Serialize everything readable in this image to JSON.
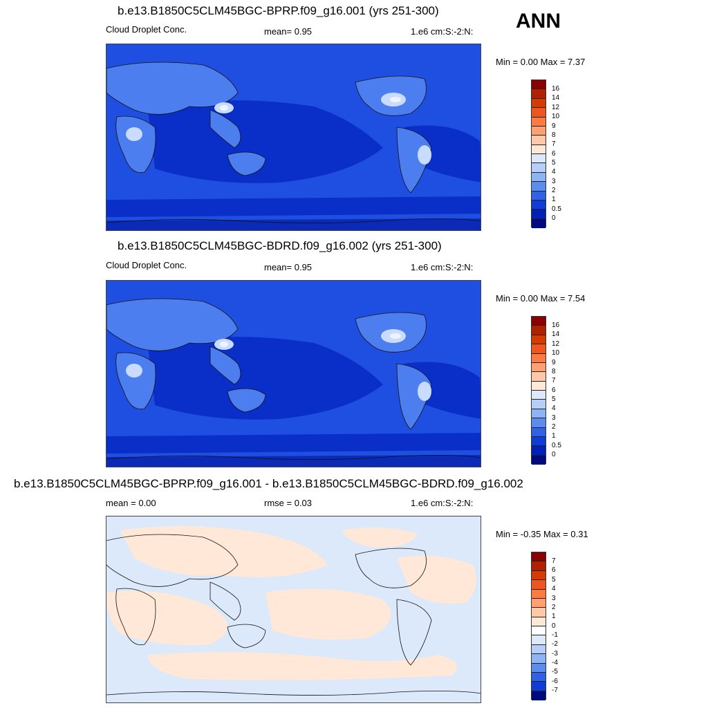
{
  "season": "ANN",
  "panels": [
    {
      "title": "b.e13.B1850C5CLM45BGC-BPRP.f09_g16.001 (yrs 251-300)",
      "left_label": "Cloud Droplet Conc.",
      "mid_label": "mean=   0.95",
      "units": "1.e6 cm:S:-2:N:",
      "minmax": "Min =   0.00 Max =   7.37",
      "colorbar": {
        "ticks": [
          "16",
          "14",
          "12",
          "10",
          "9",
          "8",
          "7",
          "6",
          "5",
          "4",
          "3",
          "2",
          "1",
          "0.5",
          "0"
        ],
        "colors": [
          "#8b0000",
          "#b22000",
          "#d63a00",
          "#f05520",
          "#ff7a40",
          "#ffa070",
          "#ffc8a8",
          "#ffe8d8",
          "#dbe9fb",
          "#b7cff8",
          "#8db4f5",
          "#5b8cf0",
          "#2f62e8",
          "#0f3cd8",
          "#0020b8",
          "#000a80"
        ]
      }
    },
    {
      "title": "b.e13.B1850C5CLM45BGC-BDRD.f09_g16.002 (yrs 251-300)",
      "left_label": "Cloud Droplet Conc.",
      "mid_label": "mean=   0.95",
      "units": "1.e6 cm:S:-2:N:",
      "minmax": "Min =   0.00 Max =   7.54",
      "colorbar": {
        "ticks": [
          "16",
          "14",
          "12",
          "10",
          "9",
          "8",
          "7",
          "6",
          "5",
          "4",
          "3",
          "2",
          "1",
          "0.5",
          "0"
        ],
        "colors": [
          "#8b0000",
          "#b22000",
          "#d63a00",
          "#f05520",
          "#ff7a40",
          "#ffa070",
          "#ffc8a8",
          "#ffe8d8",
          "#dbe9fb",
          "#b7cff8",
          "#8db4f5",
          "#5b8cf0",
          "#2f62e8",
          "#0f3cd8",
          "#0020b8",
          "#000a80"
        ]
      }
    },
    {
      "title": "b.e13.B1850C5CLM45BGC-BPRP.f09_g16.001 - b.e13.B1850C5CLM45BGC-BDRD.f09_g16.002",
      "left_label": "mean =   0.00",
      "mid_label": "rmse =   0.03",
      "units": "1.e6 cm:S:-2:N:",
      "minmax": "Min =  -0.35 Max =   0.31",
      "colorbar": {
        "ticks": [
          "7",
          "6",
          "5",
          "4",
          "3",
          "2",
          "1",
          "0",
          "-1",
          "-2",
          "-3",
          "-4",
          "-5",
          "-6",
          "-7"
        ],
        "colors": [
          "#8b0000",
          "#b22000",
          "#d63a00",
          "#f05520",
          "#ff7a40",
          "#ffa070",
          "#ffc8a8",
          "#ffe8d8",
          "#ffffff",
          "#dbe9fb",
          "#b7cff8",
          "#8db4f5",
          "#5b8cf0",
          "#2f62e8",
          "#0f3cd8",
          "#000a80"
        ]
      }
    }
  ],
  "colors": {
    "map_ocean_dark": "#0a2fc8",
    "map_ocean_mid": "#1f4fe0",
    "map_land_light": "#7fa6f2",
    "map_land_peak": "#e9f1ff",
    "diff_neg": "#dbe9fb",
    "diff_pos": "#ffe8d8"
  }
}
